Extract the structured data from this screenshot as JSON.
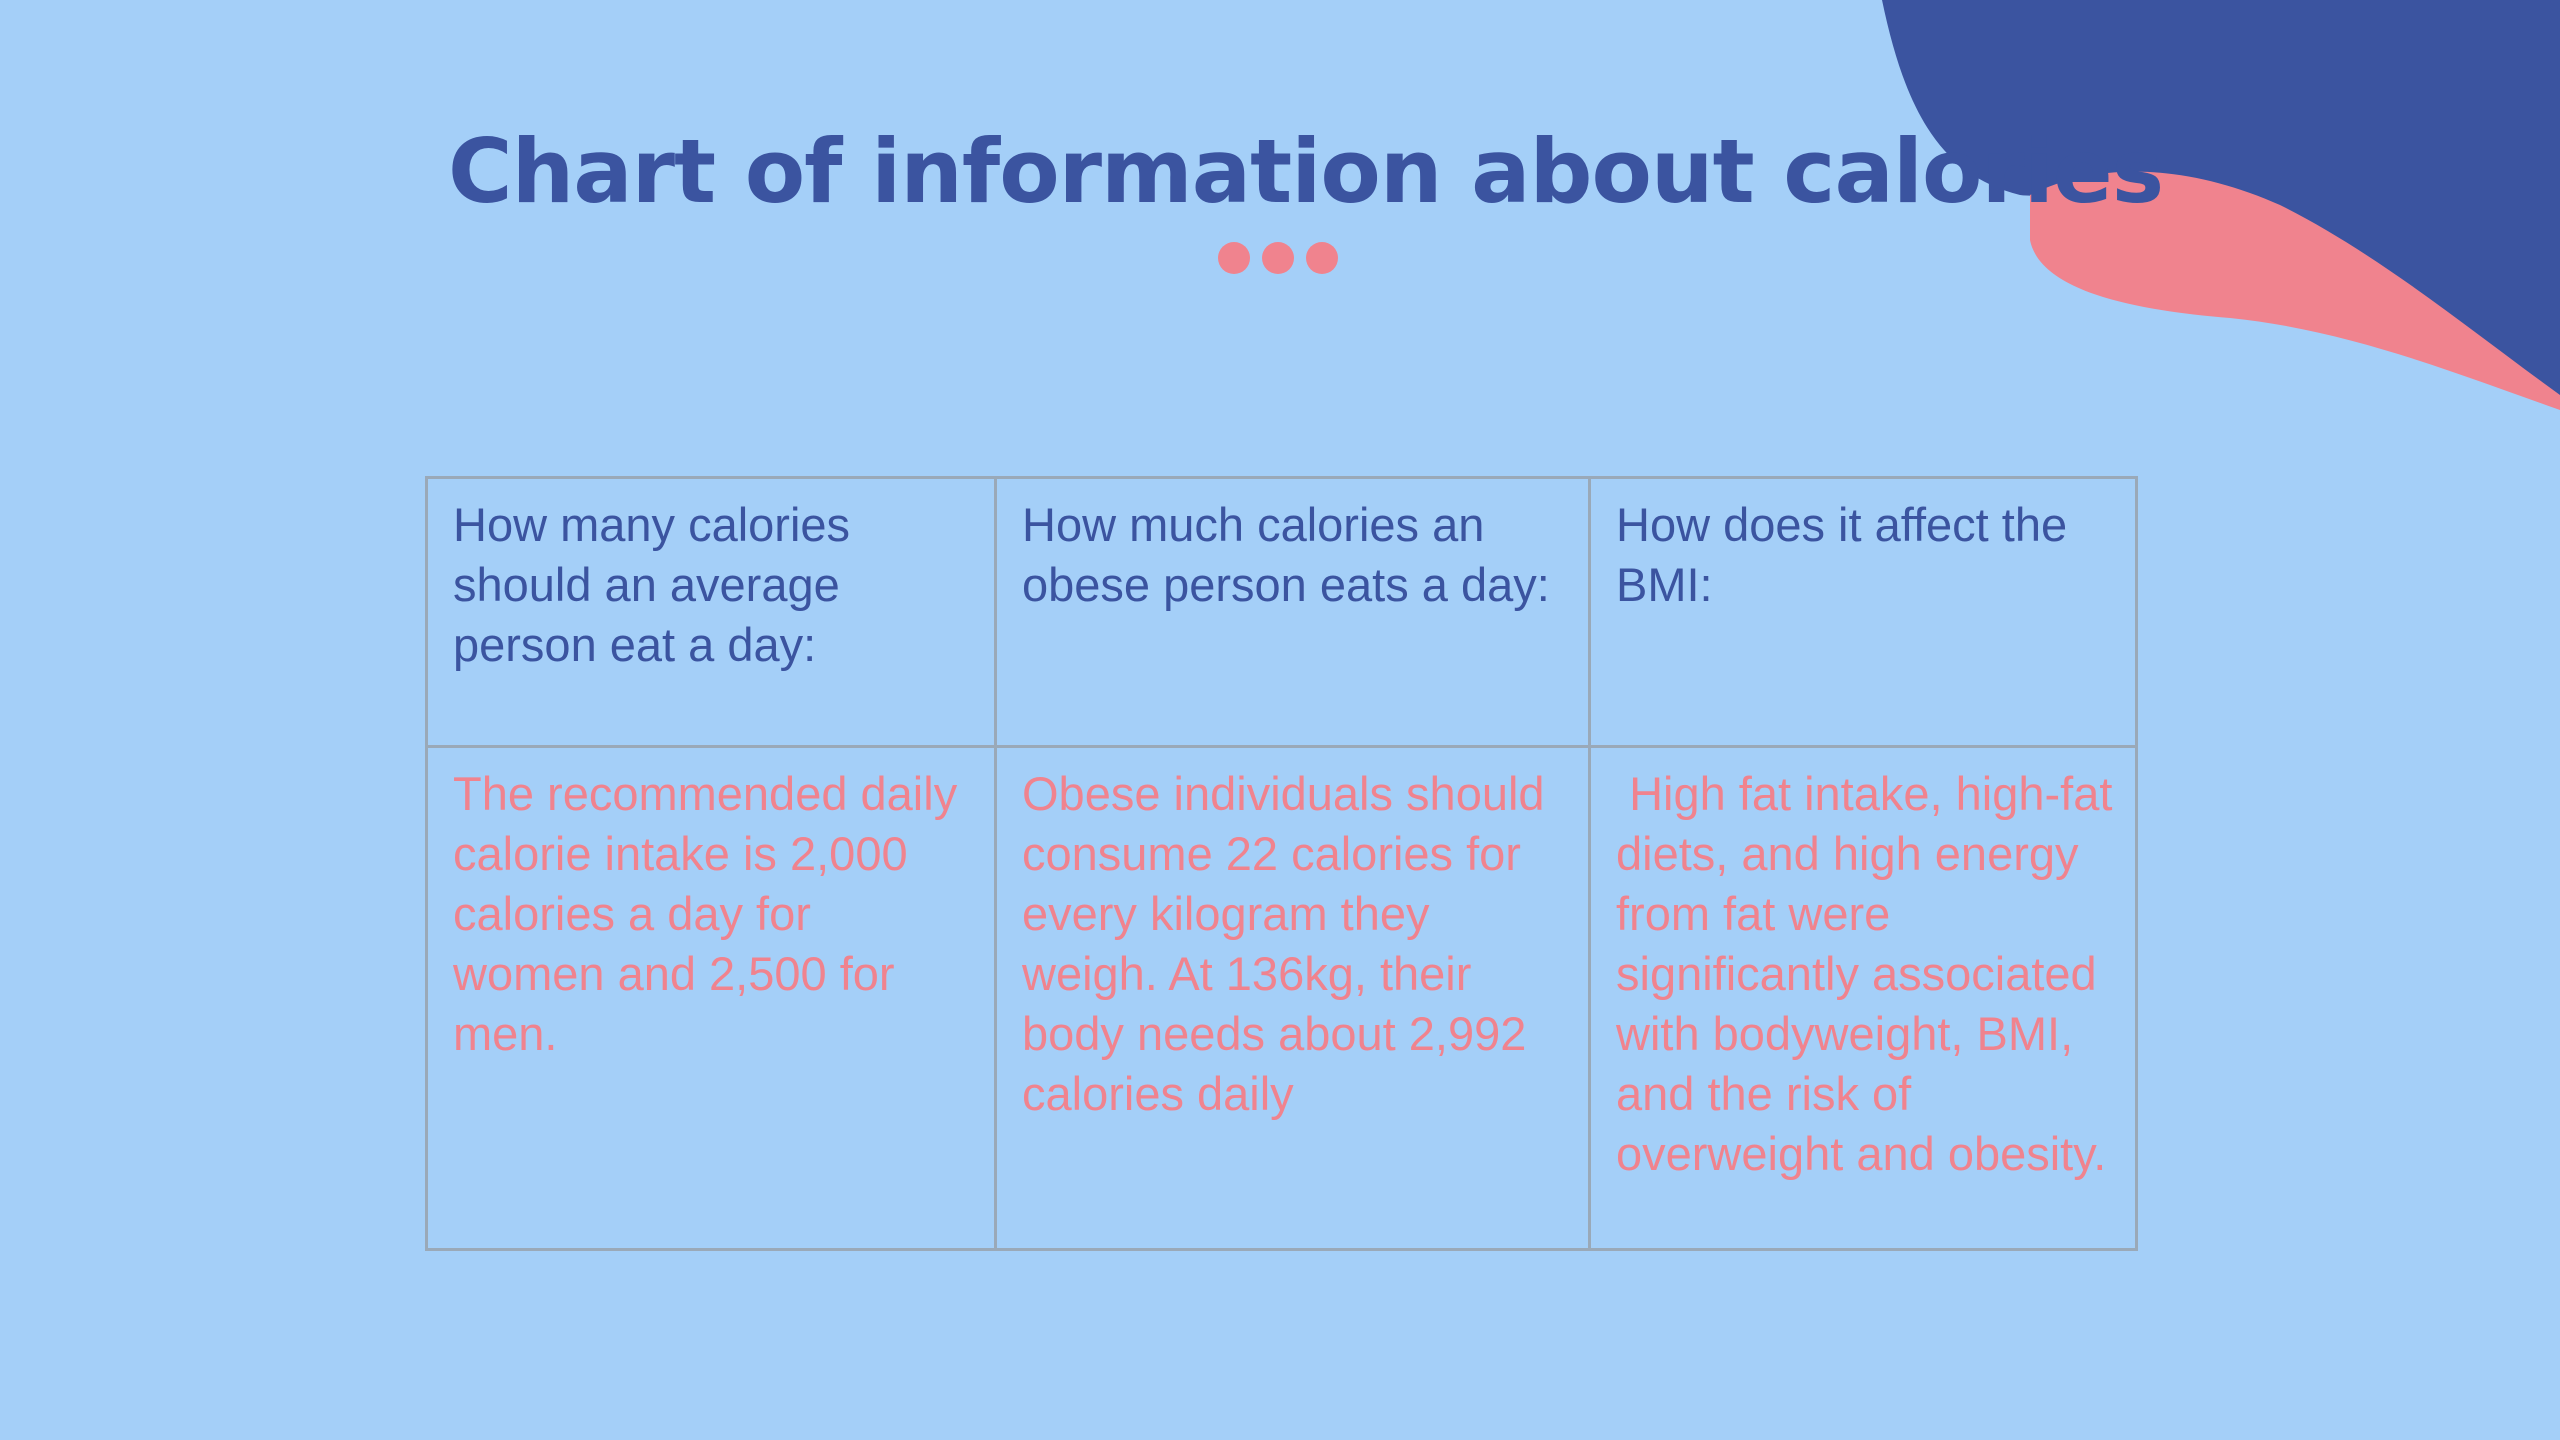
{
  "slide": {
    "title": "Chart of information about calories",
    "colors": {
      "background": "#a4cff8",
      "title": "#3b54a0",
      "header_text": "#3b54a0",
      "body_text": "#f0838e",
      "blob_dark": "#3b54a0",
      "blob_pink": "#f0838e",
      "dots": "#f0838e",
      "table_border": "#9aa9b8"
    },
    "table": {
      "headers": [
        "How many calories should an average person eat a day:",
        "How much calories an obese person eats a day:",
        "How does it affect the BMI:"
      ],
      "cells": [
        "The recommended daily calorie intake is 2,000 calories a day for women and 2,500 for men.",
        "Obese individuals should consume 22 calories for every kilogram they weigh. At 136kg, their body needs about 2,992 calories daily",
        " High fat intake, high-fat diets, and high energy from fat were significantly associated with bodyweight, BMI, and the risk of overweight and obesity."
      ]
    }
  }
}
